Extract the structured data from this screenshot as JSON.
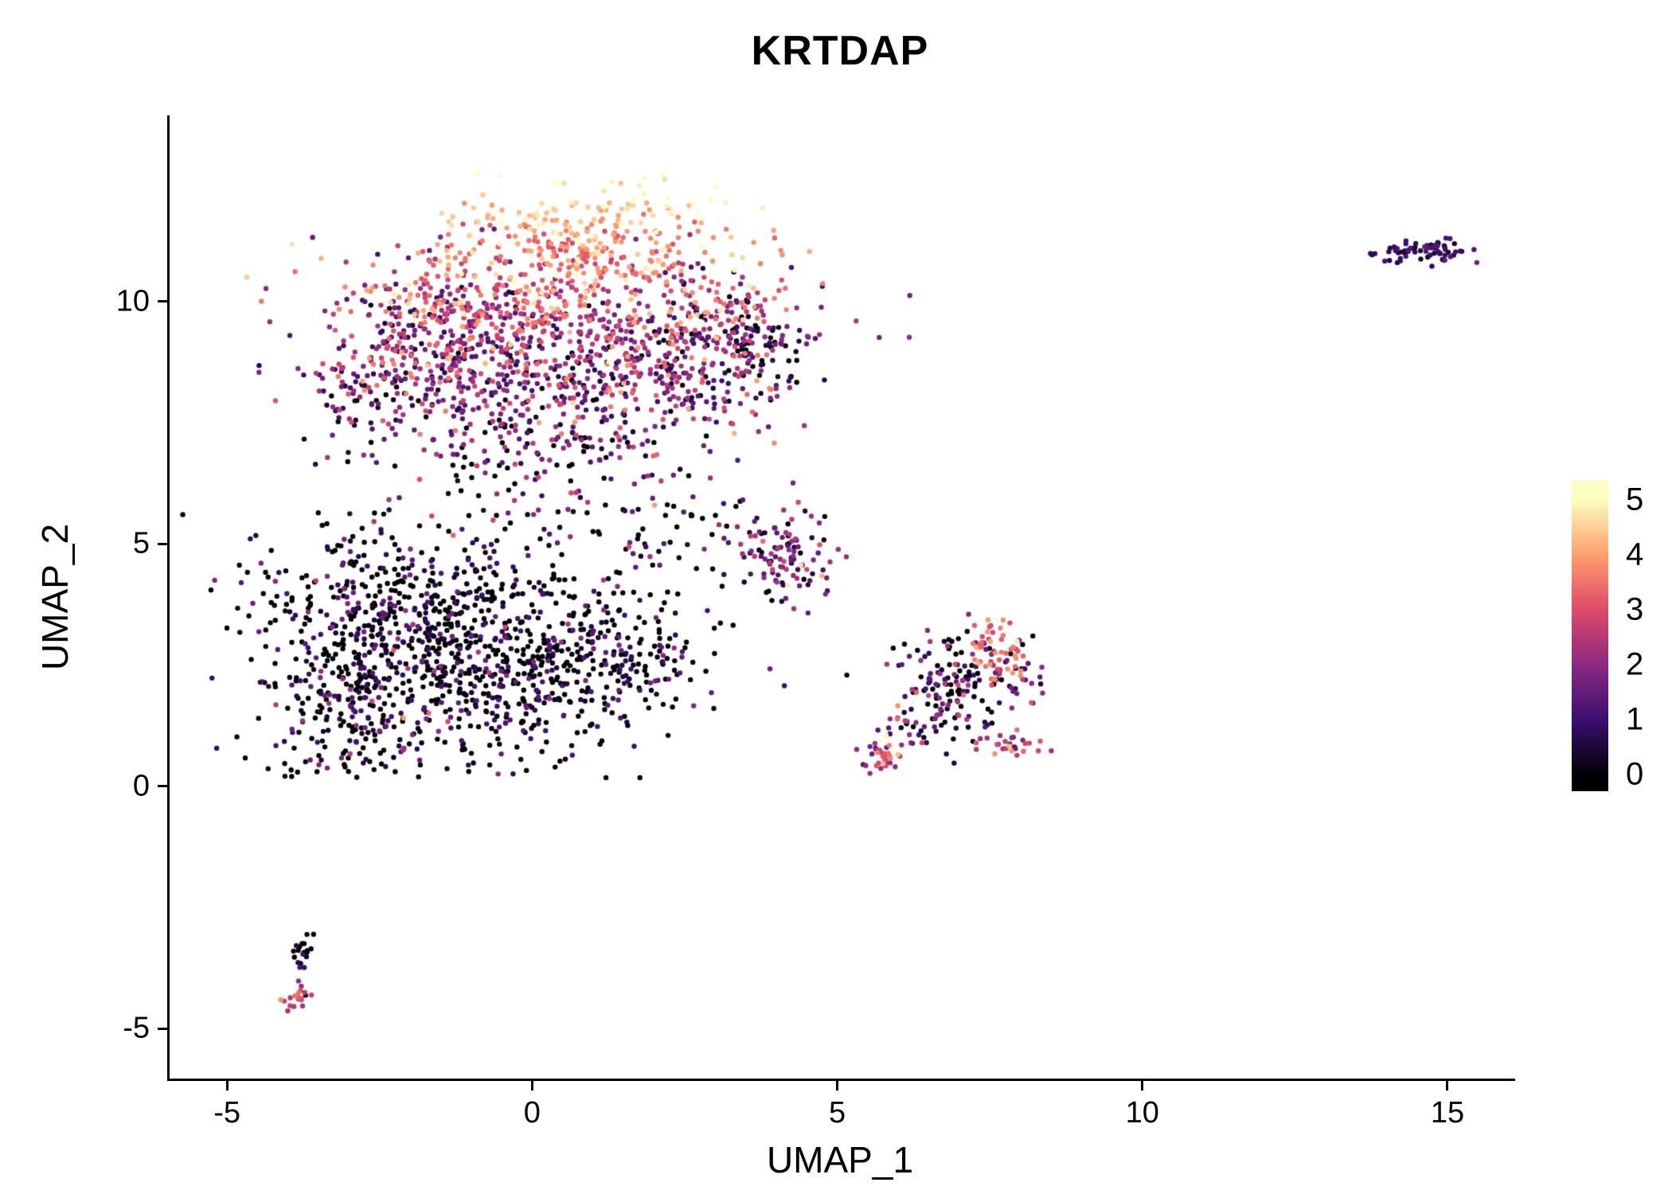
{
  "chart_data": {
    "type": "scatter",
    "title": "KRTDAP",
    "xlabel": "UMAP_1",
    "ylabel": "UMAP_2",
    "xlim": [
      -5.98,
      16.07
    ],
    "ylim": [
      -6.03,
      13.84
    ],
    "x_ticks": [
      -5,
      0,
      5,
      10,
      15
    ],
    "y_ticks": [
      -5,
      0,
      5,
      10
    ],
    "grid": false,
    "point_radius_px": 3.2,
    "seed": 7,
    "colors": {
      "background": "#FFFFFF",
      "axis": "#000000",
      "text": "#000000"
    },
    "legend": {
      "position": "right",
      "ticks": [
        0,
        1,
        2,
        3,
        4,
        5
      ],
      "bar_value_range": [
        -0.3,
        5.35
      ],
      "colormap": [
        {
          "value": 0,
          "color": "#000004"
        },
        {
          "value": 1,
          "color": "#3B0F70"
        },
        {
          "value": 2,
          "color": "#8C2981"
        },
        {
          "value": 3,
          "color": "#DE4968"
        },
        {
          "value": 4,
          "color": "#FE9F6D"
        },
        {
          "value": 5,
          "color": "#FCFDBF"
        }
      ]
    },
    "clusters": [
      {
        "name": "top-apex-high-expr",
        "n": 260,
        "cx": 0.9,
        "cy": 11.35,
        "sx": 1.1,
        "sy": 0.55,
        "expr": {
          "type": "ygrad",
          "y0": 10.2,
          "v0": 2.8,
          "y1": 12.5,
          "v1": 5.0,
          "noise": 0.55
        },
        "clip": {
          "ymax": 12.65
        }
      },
      {
        "name": "top-upper-band",
        "n": 430,
        "cx": 0.4,
        "cy": 9.9,
        "sx": 1.7,
        "sy": 0.7,
        "expr": {
          "type": "ygrad",
          "y0": 8.7,
          "v0": 2.0,
          "y1": 11.2,
          "v1": 4.3,
          "noise": 0.8
        }
      },
      {
        "name": "top-left-lobe",
        "n": 300,
        "cx": -1.6,
        "cy": 9.2,
        "sx": 0.95,
        "sy": 0.8,
        "expr": {
          "type": "normal",
          "mean": 2.1,
          "sd": 1.0
        }
      },
      {
        "name": "top-mid-lower",
        "n": 390,
        "cx": 0.6,
        "cy": 8.3,
        "sx": 1.6,
        "sy": 0.75,
        "expr": {
          "type": "normal",
          "mean": 1.7,
          "sd": 1.1
        }
      },
      {
        "name": "top-right-lobe",
        "n": 240,
        "cx": 2.7,
        "cy": 9.1,
        "sx": 0.85,
        "sy": 0.9,
        "expr": {
          "type": "normal",
          "mean": 2.0,
          "sd": 1.2
        }
      },
      {
        "name": "top-right-dark-patch",
        "n": 60,
        "cx": 3.7,
        "cy": 9.3,
        "sx": 0.35,
        "sy": 0.45,
        "expr": {
          "type": "zero",
          "p0": 0.45,
          "mean": 1.0,
          "sd": 0.8
        }
      },
      {
        "name": "top-left-arm",
        "n": 70,
        "cx": -2.75,
        "cy": 7.9,
        "sx": 0.5,
        "sy": 0.6,
        "expr": {
          "type": "normal",
          "mean": 1.2,
          "sd": 0.9
        }
      },
      {
        "name": "top-stem",
        "n": 120,
        "cx": 0.4,
        "cy": 6.7,
        "sx": 0.9,
        "sy": 0.75,
        "expr": {
          "type": "zero",
          "p0": 0.3,
          "mean": 1.5,
          "sd": 1.0
        }
      },
      {
        "name": "mid-sparse-bridge",
        "n": 60,
        "cx": 1.9,
        "cy": 5.1,
        "sx": 0.85,
        "sy": 0.55,
        "expr": {
          "type": "zero",
          "p0": 0.45,
          "mean": 1.2,
          "sd": 0.9
        }
      },
      {
        "name": "lowerleft-upper",
        "n": 520,
        "cx": -1.9,
        "cy": 3.5,
        "sx": 1.3,
        "sy": 1.0,
        "expr": {
          "type": "zero",
          "p0": 0.55,
          "mean": 0.85,
          "sd": 0.7
        },
        "clip": {
          "ymin": 0.15
        }
      },
      {
        "name": "lowerleft-lower",
        "n": 470,
        "cx": -0.6,
        "cy": 2.2,
        "sx": 1.5,
        "sy": 0.95,
        "expr": {
          "type": "zero",
          "p0": 0.6,
          "mean": 0.8,
          "sd": 0.7
        },
        "clip": {
          "ymin": 0.15
        }
      },
      {
        "name": "lowerleft-left-edge",
        "n": 170,
        "cx": -3.2,
        "cy": 1.7,
        "sx": 0.55,
        "sy": 1.1,
        "expr": {
          "type": "zero",
          "p0": 0.5,
          "mean": 0.95,
          "sd": 0.8
        },
        "clip": {
          "ymin": 0.15
        }
      },
      {
        "name": "lowerleft-right-ext",
        "n": 150,
        "cx": 1.3,
        "cy": 2.8,
        "sx": 0.95,
        "sy": 0.7,
        "expr": {
          "type": "zero",
          "p0": 0.5,
          "mean": 0.9,
          "sd": 0.8
        },
        "clip": {
          "ymin": 0.15
        }
      },
      {
        "name": "small-mid-cluster",
        "n": 110,
        "cx": 4.1,
        "cy": 4.8,
        "sx": 0.38,
        "sy": 0.55,
        "expr": {
          "type": "normal",
          "mean": 1.6,
          "sd": 1.0
        }
      },
      {
        "name": "right-cluster-main",
        "n": 150,
        "cx": 7.0,
        "cy": 2.2,
        "sx": 0.5,
        "sy": 0.55,
        "expr": {
          "type": "zero",
          "p0": 0.35,
          "mean": 1.4,
          "sd": 1.0
        }
      },
      {
        "name": "right-cluster-orange-tip",
        "n": 40,
        "cx": 7.55,
        "cy": 2.85,
        "sx": 0.22,
        "sy": 0.3,
        "expr": {
          "type": "normal",
          "mean": 3.3,
          "sd": 0.6
        }
      },
      {
        "name": "right-diag-streak-low",
        "n": 35,
        "cx": 5.7,
        "cy": 0.65,
        "sx": 0.2,
        "sy": 0.2,
        "expr": {
          "type": "normal",
          "mean": 2.6,
          "sd": 0.8
        }
      },
      {
        "name": "right-diag-streak-high",
        "n": 30,
        "cx": 6.3,
        "cy": 1.2,
        "sx": 0.25,
        "sy": 0.25,
        "expr": {
          "type": "normal",
          "mean": 1.5,
          "sd": 1.0
        }
      },
      {
        "name": "right-small-streak",
        "n": 25,
        "cx": 7.75,
        "cy": 0.85,
        "sx": 0.3,
        "sy": 0.12,
        "expr": {
          "type": "normal",
          "mean": 2.4,
          "sd": 0.8
        }
      },
      {
        "name": "right-scatter",
        "n": 20,
        "cx": 7.9,
        "cy": 2.3,
        "sx": 0.25,
        "sy": 0.5,
        "expr": {
          "type": "normal",
          "mean": 1.8,
          "sd": 1.0
        }
      },
      {
        "name": "far-right-island",
        "n": 70,
        "cx": 14.55,
        "cy": 11.05,
        "sx": 0.38,
        "sy": 0.13,
        "expr": {
          "type": "normal",
          "mean": 0.85,
          "sd": 0.4
        }
      },
      {
        "name": "bottomleft-dark-top",
        "n": 20,
        "cx": -3.8,
        "cy": -3.5,
        "sx": 0.08,
        "sy": 0.25,
        "expr": {
          "type": "zero",
          "p0": 0.8,
          "mean": 0.5,
          "sd": 0.4
        }
      },
      {
        "name": "bottomleft-pink-bottom",
        "n": 18,
        "cx": -3.9,
        "cy": -4.35,
        "sx": 0.09,
        "sy": 0.18,
        "expr": {
          "type": "normal",
          "mean": 2.8,
          "sd": 0.5
        }
      }
    ]
  }
}
